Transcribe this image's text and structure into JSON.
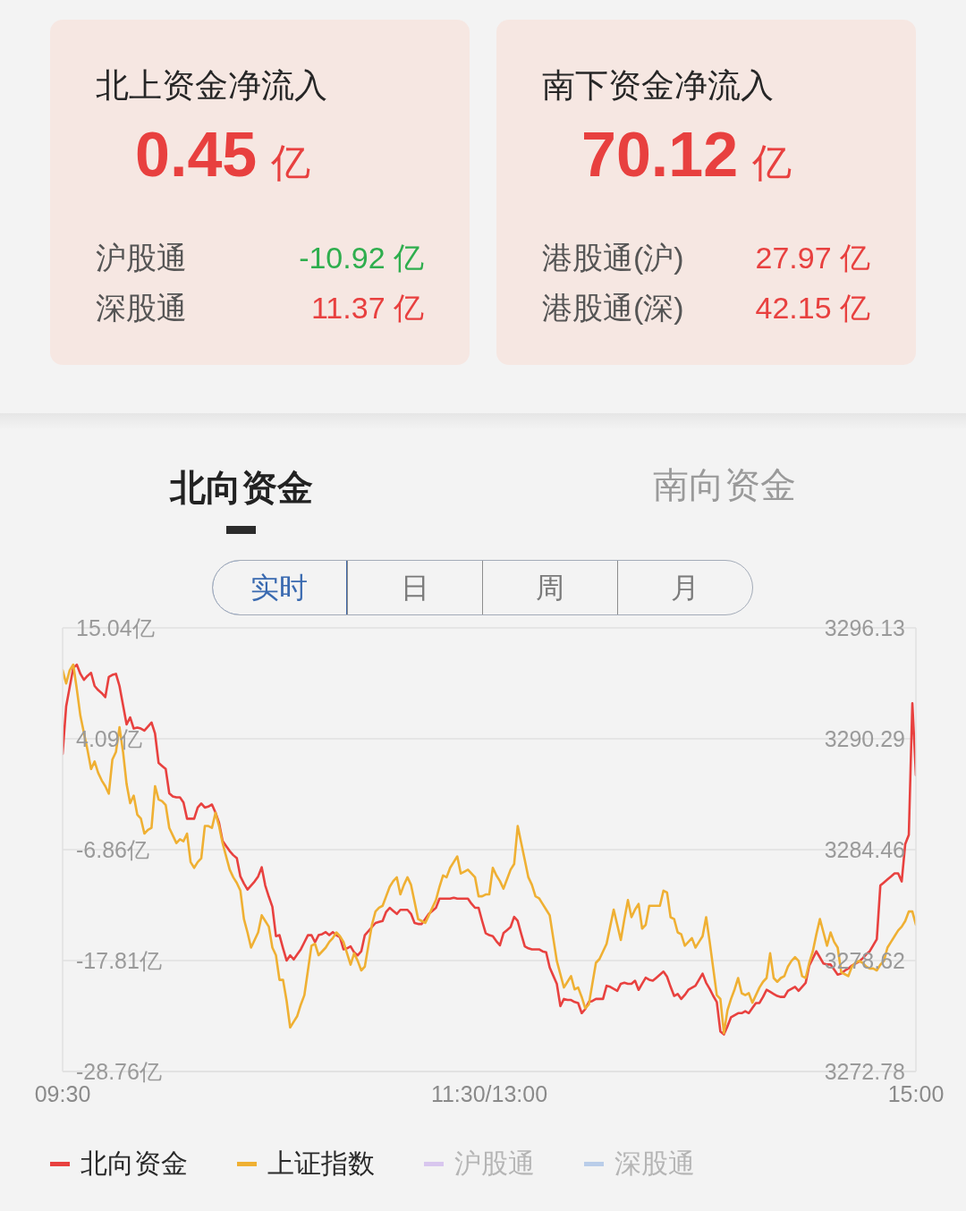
{
  "chart_data": [
    {
      "type": "other",
      "title": "北上资金净流入",
      "subtitle": "0.45 亿",
      "categories": [
        "沪股通",
        "深股通"
      ],
      "values": [
        -10.92,
        11.37
      ],
      "value_labels": [
        "-10.92 亿",
        "11.37 亿"
      ]
    },
    {
      "type": "other",
      "title": "南下资金净流入",
      "subtitle": "70.12 亿",
      "categories": [
        "港股通(沪)",
        "港股通(深)"
      ],
      "values": [
        27.97,
        42.15
      ],
      "value_labels": [
        "27.97 亿",
        "42.15 亿"
      ]
    },
    {
      "type": "other",
      "categories": [
        "北向资金",
        "南向资金"
      ],
      "annotations": [
        "实时",
        "日",
        "周",
        "月"
      ]
    },
    {
      "type": "line",
      "categories": [
        "09:30",
        null,
        null,
        null,
        null,
        null,
        null,
        null,
        null,
        null,
        null,
        null,
        null,
        null,
        null,
        null,
        null,
        null,
        null,
        null,
        null,
        null,
        null,
        null,
        null,
        null,
        null,
        null,
        null,
        null,
        null,
        null,
        null,
        null,
        null,
        null,
        null,
        null,
        null,
        null,
        null,
        null,
        null,
        null,
        null,
        null,
        null,
        null,
        null,
        null,
        null,
        null,
        null,
        null,
        null,
        null,
        null,
        null,
        null,
        null,
        null,
        null,
        null,
        null,
        null,
        null,
        null,
        null,
        null,
        null,
        null,
        null,
        null,
        null,
        null,
        null,
        null,
        null,
        null,
        null,
        null,
        null,
        null,
        null,
        null,
        null,
        null,
        null,
        null,
        null,
        null,
        null,
        null,
        null,
        null,
        null,
        null,
        null,
        null,
        null,
        null,
        null,
        null,
        null,
        null,
        null,
        null,
        null,
        null,
        null,
        null,
        null,
        null,
        null,
        null,
        null,
        null,
        null,
        null,
        null,
        "11:30/13:00",
        null,
        null,
        null,
        null,
        null,
        null,
        null,
        null,
        null,
        null,
        null,
        null,
        null,
        null,
        null,
        null,
        null,
        null,
        null,
        null,
        null,
        null,
        null,
        null,
        null,
        null,
        null,
        null,
        null,
        null,
        null,
        null,
        null,
        null,
        null,
        null,
        null,
        null,
        null,
        null,
        null,
        null,
        null,
        null,
        null,
        null,
        null,
        null,
        null,
        null,
        null,
        null,
        null,
        null,
        null,
        null,
        null,
        null,
        null,
        null,
        null,
        null,
        null,
        null,
        null,
        null,
        null,
        null,
        null,
        null,
        null,
        null,
        null,
        null,
        null,
        null,
        null,
        null,
        null,
        null,
        null,
        null,
        null,
        null,
        null,
        null,
        null,
        null,
        null,
        null,
        null,
        null,
        null,
        null,
        null,
        null,
        null,
        null,
        null,
        null,
        null,
        null,
        null,
        null,
        null,
        null,
        null,
        null,
        null,
        null,
        null,
        null,
        null,
        null,
        null,
        null,
        null,
        null,
        null,
        "15:00"
      ],
      "ylim": [
        -28.76,
        15.04
      ],
      "yticks": [
        {
          "value": -28.76,
          "label": "-28.76亿"
        },
        {
          "value": -17.81,
          "label": "-17.81亿"
        },
        {
          "value": -6.86,
          "label": "-6.86亿"
        },
        {
          "value": 4.09,
          "label": "4.09亿"
        },
        {
          "value": 15.04,
          "label": "15.04亿"
        }
      ],
      "y2lim": [
        3272.78,
        3296.13
      ],
      "y2ticks": [
        3272.78,
        3278.62,
        3284.46,
        3290.29,
        3296.13
      ],
      "grid": "y",
      "legend": "bottom",
      "series": [
        {
          "name": "北向资金",
          "color": "#e8413f",
          "values": [
            2.6,
            7.3,
            9.2,
            11.1,
            11.4,
            10.5,
            9.9,
            10.3,
            10.6,
            9.3,
            8.9,
            8.6,
            8.2,
            10.2,
            10.4,
            10.5,
            9.3,
            7.4,
            5.5,
            6.2,
            5.1,
            5.2,
            5.1,
            4.9,
            5.3,
            5.7,
            4.6,
            1.7,
            1.4,
            1.1,
            -1.3,
            -1.6,
            -1.7,
            -1.7,
            -2.2,
            -3.8,
            -3.8,
            -3.8,
            -2.7,
            -2.3,
            -2.7,
            -2.6,
            -2.4,
            -3.2,
            -4.2,
            -6.0,
            -6.5,
            -7.0,
            -7.4,
            -7.7,
            -9.5,
            -10.2,
            -10.8,
            -10.4,
            -10.0,
            -9.5,
            -8.6,
            -10.4,
            -11.5,
            -12.5,
            -15.4,
            -15.3,
            -16.6,
            -17.8,
            -17.3,
            -17.7,
            -17.2,
            -16.7,
            -16.0,
            -15.3,
            -15.3,
            -16.0,
            -15.3,
            -15.2,
            -15.0,
            -15.3,
            -15.0,
            -15.3,
            -15.5,
            -16.7,
            -16.6,
            -16.4,
            -17.0,
            -17.3,
            -16.9,
            -15.3,
            -14.9,
            -14.5,
            -14.1,
            -14.0,
            -13.9,
            -13.0,
            -12.6,
            -12.9,
            -13.2,
            -12.8,
            -12.8,
            -12.8,
            -13.2,
            -14.1,
            -14.2,
            -14.2,
            -13.7,
            -13.2,
            -12.9,
            -12.6,
            -11.7,
            -11.7,
            -11.7,
            -11.7,
            -11.6,
            -11.7,
            -11.7,
            -11.7,
            -11.7,
            -12.2,
            -12.6,
            -12.6,
            -13.9,
            -15.1,
            -15.3,
            -15.4,
            -15.9,
            -16.3,
            -15.1,
            -14.8,
            -14.5,
            -13.5,
            -13.9,
            -15.2,
            -16.4,
            -16.6,
            -16.7,
            -16.7,
            -16.7,
            -16.9,
            -17.0,
            -18.5,
            -19.3,
            -20.1,
            -22.3,
            -21.6,
            -21.7,
            -21.7,
            -21.9,
            -22.0,
            -23.0,
            -22.6,
            -21.9,
            -21.8,
            -21.6,
            -21.6,
            -21.6,
            -20.3,
            -20.4,
            -20.6,
            -20.8,
            -20.1,
            -20.0,
            -20.1,
            -20.1,
            -19.8,
            -20.7,
            -20.1,
            -19.5,
            -19.7,
            -19.8,
            -19.5,
            -19.2,
            -18.9,
            -19.4,
            -20.4,
            -21.3,
            -21.1,
            -21.6,
            -21.2,
            -20.7,
            -20.5,
            -20.3,
            -19.7,
            -19.1,
            -20.0,
            -20.6,
            -21.3,
            -21.9,
            -24.8,
            -25.1,
            -24.3,
            -23.4,
            -23.2,
            -23.0,
            -23.0,
            -22.8,
            -23.0,
            -22.5,
            -22.0,
            -22.0,
            -21.4,
            -20.7,
            -20.9,
            -21.1,
            -21.3,
            -21.4,
            -21.4,
            -20.8,
            -20.6,
            -20.4,
            -20.8,
            -20.4,
            -20.0,
            -18.3,
            -17.6,
            -16.9,
            -17.5,
            -18.1,
            -18.2,
            -18.2,
            -18.7,
            -19.2,
            -19.1,
            -18.8,
            -18.6,
            -18.3,
            -18.1,
            -17.9,
            -17.6,
            -17.2,
            -16.9,
            -16.3,
            -15.7,
            -10.4,
            -10.1,
            -9.8,
            -9.5,
            -9.2,
            -9.2,
            -10.0,
            -6.3,
            -5.4,
            7.6,
            0.5
          ]
        },
        {
          "name": "上证指数",
          "color": "#efb033",
          "axis": "y2",
          "values": [
            3293.9,
            3293.2,
            3293.9,
            3294.2,
            3292.9,
            3291.5,
            3290.6,
            3289.7,
            3288.7,
            3289.1,
            3288.5,
            3288.1,
            3287.8,
            3287.4,
            3289.2,
            3289.6,
            3290.9,
            3289.6,
            3287.9,
            3286.9,
            3287.3,
            3286.3,
            3286.1,
            3285.3,
            3285.5,
            3285.6,
            3287.8,
            3287.1,
            3287.0,
            3286.8,
            3285.6,
            3285.2,
            3284.8,
            3285.0,
            3284.9,
            3285.3,
            3283.8,
            3283.5,
            3283.8,
            3284.0,
            3285.7,
            3285.7,
            3285.6,
            3286.4,
            3285.7,
            3284.8,
            3284.1,
            3283.4,
            3283.0,
            3282.7,
            3282.3,
            3280.8,
            3280.1,
            3279.3,
            3279.7,
            3280.1,
            3281.0,
            3280.7,
            3280.4,
            3279.3,
            3278.9,
            3277.6,
            3277.6,
            3276.5,
            3275.1,
            3275.4,
            3275.7,
            3276.3,
            3276.8,
            3278.1,
            3279.4,
            3279.5,
            3278.9,
            3279.1,
            3279.3,
            3279.6,
            3279.8,
            3280.1,
            3279.9,
            3279.6,
            3279.0,
            3278.4,
            3279.0,
            3278.6,
            3278.1,
            3278.3,
            3279.4,
            3280.5,
            3281.2,
            3281.4,
            3281.5,
            3282.0,
            3282.5,
            3282.8,
            3283.0,
            3282.1,
            3282.6,
            3283.0,
            3282.6,
            3281.7,
            3280.8,
            3280.7,
            3280.6,
            3281.0,
            3281.4,
            3281.8,
            3282.5,
            3283.1,
            3283.0,
            3283.5,
            3283.8,
            3284.1,
            3283.2,
            3283.3,
            3283.4,
            3283.2,
            3283.0,
            3282.0,
            3282.0,
            3282.1,
            3282.1,
            3283.5,
            3283.1,
            3282.8,
            3282.4,
            3282.9,
            3283.4,
            3283.7,
            3285.7,
            3284.8,
            3283.9,
            3283.0,
            3282.6,
            3282.0,
            3281.9,
            3281.6,
            3281.3,
            3281.0,
            3279.8,
            3278.6,
            3277.9,
            3277.2,
            3277.5,
            3277.8,
            3277.1,
            3277.2,
            3276.7,
            3276.1,
            3276.3,
            3277.4,
            3278.5,
            3278.7,
            3279.1,
            3279.5,
            3280.4,
            3281.3,
            3280.5,
            3279.7,
            3280.8,
            3281.8,
            3280.9,
            3281.3,
            3281.6,
            3280.3,
            3280.5,
            3281.5,
            3281.5,
            3281.5,
            3281.5,
            3282.3,
            3282.2,
            3280.9,
            3280.8,
            3280.1,
            3280.0,
            3279.4,
            3279.6,
            3279.8,
            3279.3,
            3279.6,
            3279.9,
            3280.9,
            3279.6,
            3278.2,
            3276.8,
            3276.6,
            3274.8,
            3276.0,
            3276.6,
            3277.1,
            3277.7,
            3276.9,
            3276.8,
            3276.9,
            3276.4,
            3276.8,
            3277.2,
            3277.5,
            3277.7,
            3279.0,
            3277.7,
            3277.5,
            3277.7,
            3277.8,
            3278.3,
            3278.6,
            3278.8,
            3278.6,
            3277.8,
            3277.7,
            3278.5,
            3279.1,
            3280.0,
            3280.8,
            3280.1,
            3279.4,
            3280.1,
            3279.6,
            3279.3,
            3278.0,
            3277.9,
            3277.8,
            3278.3,
            3278.5,
            3278.6,
            3278.5,
            3278.3,
            3278.2,
            3278.2,
            3278.1,
            3278.4,
            3278.6,
            3279.3,
            3279.6,
            3279.9,
            3280.2,
            3280.4,
            3280.7,
            3281.2,
            3281.2,
            3280.5
          ]
        },
        {
          "name": "沪股通",
          "color": "#d8c6ee",
          "values": [
            null,
            null,
            null,
            null,
            null,
            null,
            null,
            null,
            null,
            null,
            null,
            null,
            null,
            null,
            null,
            null,
            null,
            null,
            null,
            null,
            null,
            null,
            null,
            null,
            null,
            null,
            null,
            null,
            null,
            null,
            null,
            null,
            null,
            null,
            null,
            null,
            null,
            null,
            null,
            null,
            null,
            null,
            null,
            null,
            null,
            null,
            null,
            null,
            null,
            null,
            null,
            null,
            null,
            null,
            null,
            null,
            null,
            null,
            null,
            null,
            null,
            null,
            null,
            null,
            null,
            null,
            null,
            null,
            null,
            null,
            null,
            null,
            null,
            null,
            null,
            null,
            null,
            null,
            null,
            null,
            null,
            null,
            null,
            null,
            null,
            null,
            null,
            null,
            null,
            null,
            null,
            null,
            null,
            null,
            null,
            null,
            null,
            null,
            null,
            null,
            null,
            null,
            null,
            null,
            null,
            null,
            null,
            null,
            null,
            null,
            null,
            null,
            null,
            null,
            null,
            null,
            null,
            null,
            null,
            null,
            null,
            null,
            null,
            null,
            null,
            null,
            null,
            null,
            null,
            null,
            null,
            null,
            null,
            null,
            null,
            null,
            null,
            null,
            null,
            null,
            null,
            null,
            null,
            null,
            null,
            null,
            null,
            null,
            null,
            null,
            null,
            null,
            null,
            null,
            null,
            null,
            null,
            null,
            null,
            null,
            null,
            null,
            null,
            null,
            null,
            null,
            null,
            null,
            null,
            null,
            null,
            null,
            null,
            null,
            null,
            null,
            null,
            null,
            null,
            null,
            null,
            null,
            null,
            null,
            null,
            null,
            null,
            null,
            null,
            null,
            null,
            null,
            null,
            null,
            null,
            null,
            null,
            null,
            null,
            null,
            null,
            null,
            null,
            null,
            null,
            null,
            null,
            null,
            null,
            null,
            null,
            null,
            null,
            null,
            null,
            null,
            null,
            null,
            null,
            null,
            null,
            null,
            null,
            null,
            null,
            null,
            null,
            null,
            null,
            null,
            null,
            null,
            null,
            null,
            null,
            null,
            null,
            null,
            null,
            null,
            null
          ]
        },
        {
          "name": "深股通",
          "color": "#b9cde9",
          "values": [
            null,
            null,
            null,
            null,
            null,
            null,
            null,
            null,
            null,
            null,
            null,
            null,
            null,
            null,
            null,
            null,
            null,
            null,
            null,
            null,
            null,
            null,
            null,
            null,
            null,
            null,
            null,
            null,
            null,
            null,
            null,
            null,
            null,
            null,
            null,
            null,
            null,
            null,
            null,
            null,
            null,
            null,
            null,
            null,
            null,
            null,
            null,
            null,
            null,
            null,
            null,
            null,
            null,
            null,
            null,
            null,
            null,
            null,
            null,
            null,
            null,
            null,
            null,
            null,
            null,
            null,
            null,
            null,
            null,
            null,
            null,
            null,
            null,
            null,
            null,
            null,
            null,
            null,
            null,
            null,
            null,
            null,
            null,
            null,
            null,
            null,
            null,
            null,
            null,
            null,
            null,
            null,
            null,
            null,
            null,
            null,
            null,
            null,
            null,
            null,
            null,
            null,
            null,
            null,
            null,
            null,
            null,
            null,
            null,
            null,
            null,
            null,
            null,
            null,
            null,
            null,
            null,
            null,
            null,
            null,
            null,
            null,
            null,
            null,
            null,
            null,
            null,
            null,
            null,
            null,
            null,
            null,
            null,
            null,
            null,
            null,
            null,
            null,
            null,
            null,
            null,
            null,
            null,
            null,
            null,
            null,
            null,
            null,
            null,
            null,
            null,
            null,
            null,
            null,
            null,
            null,
            null,
            null,
            null,
            null,
            null,
            null,
            null,
            null,
            null,
            null,
            null,
            null,
            null,
            null,
            null,
            null,
            null,
            null,
            null,
            null,
            null,
            null,
            null,
            null,
            null,
            null,
            null,
            null,
            null,
            null,
            null,
            null,
            null,
            null,
            null,
            null,
            null,
            null,
            null,
            null,
            null,
            null,
            null,
            null,
            null,
            null,
            null,
            null,
            null,
            null,
            null,
            null,
            null,
            null,
            null,
            null,
            null,
            null,
            null,
            null,
            null,
            null,
            null,
            null,
            null,
            null,
            null,
            null,
            null,
            null,
            null,
            null,
            null,
            null,
            null,
            null,
            null,
            null,
            null,
            null,
            null,
            null,
            null,
            null,
            null
          ]
        }
      ]
    }
  ]
}
